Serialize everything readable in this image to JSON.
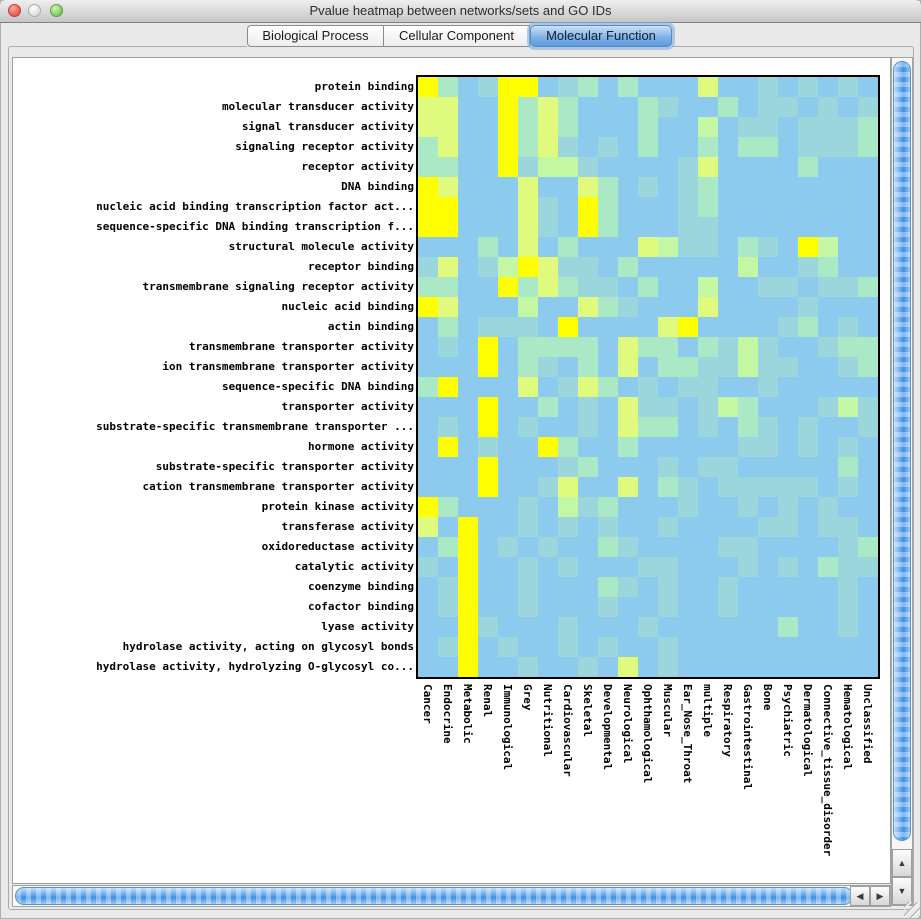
{
  "window": {
    "title": "Pvalue heatmap between networks/sets and GO IDs"
  },
  "tabs": [
    {
      "label": "Biological Process",
      "selected": false
    },
    {
      "label": "Cellular Component",
      "selected": false
    },
    {
      "label": "Molecular Function",
      "selected": true
    }
  ],
  "scrollbar": {
    "up_glyph": "▲",
    "down_glyph": "▼",
    "left_glyph": "◀",
    "right_glyph": "▶"
  },
  "chart_data": {
    "type": "heatmap",
    "title": "Pvalue heatmap between networks/sets and GO IDs",
    "rows": [
      "protein binding",
      "molecular transducer activity",
      "signal transducer activity",
      "signaling receptor activity",
      "receptor activity",
      "DNA binding",
      "nucleic acid binding transcription factor act...",
      "sequence-specific DNA binding transcription f...",
      "structural molecule activity",
      "receptor binding",
      "transmembrane signaling receptor activity",
      "nucleic acid binding",
      "actin binding",
      "transmembrane transporter activity",
      "ion transmembrane transporter activity",
      "sequence-specific DNA binding",
      "transporter activity",
      "substrate-specific transmembrane transporter ...",
      "hormone activity",
      "substrate-specific transporter activity",
      "cation transmembrane transporter activity",
      "protein kinase activity",
      "transferase activity",
      "oxidoreductase activity",
      "catalytic activity",
      "coenzyme binding",
      "cofactor binding",
      "lyase activity",
      "hydrolase activity, acting on glycosyl bonds",
      "hydrolase activity, hydrolyzing O-glycosyl co..."
    ],
    "columns": [
      "Cancer",
      "Endocrine",
      "Metabolic",
      "Renal",
      "Immunological",
      "Grey",
      "Nutritional",
      "Cardiovascular",
      "Skeletal",
      "Developmental",
      "Neurological",
      "Ophthamological",
      "Muscular",
      "Ear_Nose_Throat",
      "multiple",
      "Respiratory",
      "Gastrointestinal",
      "Bone",
      "Psychiatric",
      "Dermatological",
      "Connective_tissue_disorder",
      "Hematological",
      "Unclassified"
    ],
    "palette": {
      "0": "#8DCBEE",
      "1": "#9AD6DB",
      "2": "#ABE9C6",
      "3": "#C3F7A4",
      "4": "#E0FA7E",
      "5": "#FFFF00"
    },
    "palette_note": "color level 0 = light blue (high p-value) through 5 = bright yellow (low p-value)",
    "border_color": "#000000",
    "grid": [
      "52015501202000400101010",
      "44005242000210020110101",
      "44005242000200301101112",
      "24005241010200202201112",
      "22005133100001400002000",
      "54000400420101200000000",
      "55000410520001200000000",
      "55000410520001100000000",
      "00020402000431102105300",
      "14013541102000003001200",
      "22005242110200300110112",
      "54000300421000400001000",
      "02011105000045000012010",
      "01050222204220213100122",
      "00050210204022113110012",
      "25000401420101100100000",
      "00050020104110132000131",
      "01050100104220102101001",
      "05010052002000001101010",
      "00050001200010110000020",
      "00050014004021011111010",
      "52000103120001001010100",
      "40500101010010000110110",
      "02501010021000011000012",
      "10500101000110001010211",
      "01500100021010010000010",
      "01500100010010010000010",
      "00510001000100000020010",
      "01501001010010000000000",
      "00500100104010000000000"
    ]
  }
}
